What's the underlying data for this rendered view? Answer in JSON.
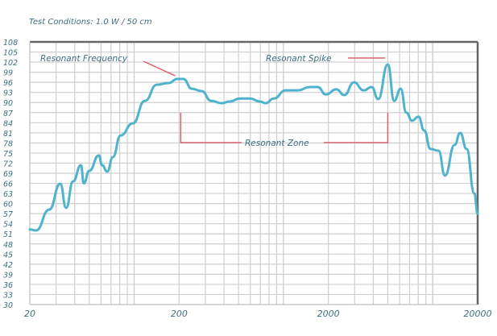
{
  "chart_data": {
    "type": "line",
    "title": "Test Conditions: 1.0 W / 50 cm",
    "xlabel": "",
    "ylabel": "",
    "x_scale": "log",
    "xlim": [
      20,
      20000
    ],
    "ylim": [
      30,
      108
    ],
    "x_tick_labels": [
      "20",
      "200",
      "2000",
      "20000"
    ],
    "x_ticks": [
      20,
      200,
      2000,
      20000
    ],
    "y_ticks": [
      30,
      33,
      36,
      39,
      42,
      45,
      48,
      51,
      54,
      57,
      60,
      63,
      66,
      69,
      72,
      75,
      78,
      81,
      84,
      87,
      90,
      93,
      96,
      99,
      102,
      105,
      108
    ],
    "grid": true,
    "line_color": "#4fb3cc",
    "annotation_color": "#d9606e",
    "series": [
      {
        "x": [
          20,
          22,
          27,
          32,
          35,
          39,
          44,
          46,
          50,
          58,
          61,
          66,
          72,
          81,
          98,
          118,
          142,
          171,
          194,
          214,
          243,
          283,
          328,
          386,
          437,
          512,
          594,
          698,
          760,
          861,
          1036,
          1246,
          1500,
          1697,
          1922,
          2260,
          2556,
          2968,
          3446,
          3900,
          4310,
          5000,
          5520,
          6100,
          6650,
          7260,
          8030,
          8760,
          9670,
          10940,
          12080,
          14010,
          15280,
          16860,
          19000,
          20000
        ],
        "y": [
          52.3,
          52,
          58.2,
          65.9,
          58.7,
          66.6,
          71.4,
          66,
          69.7,
          74.3,
          71.4,
          69.5,
          73.8,
          80.2,
          83.8,
          90.5,
          95.3,
          95.8,
          97,
          97,
          94.1,
          93.4,
          90.5,
          89.8,
          90.3,
          91.2,
          91.2,
          90.3,
          89.8,
          91.2,
          93.6,
          93.6,
          94.6,
          94.6,
          92.4,
          93.9,
          92.2,
          96,
          93.6,
          94.6,
          91,
          101.3,
          90.5,
          94.1,
          87,
          84.6,
          85.8,
          81.7,
          76.2,
          75.7,
          68.3,
          77.4,
          81,
          76.2,
          63,
          57
        ]
      }
    ],
    "annotations": [
      {
        "text": "Resonant Frequency",
        "x": 200,
        "y": 97
      },
      {
        "text": "Resonant Spike",
        "x": 5000,
        "y": 101.3
      },
      {
        "text": "Resonant Zone",
        "x_range": [
          200,
          5000
        ]
      }
    ]
  }
}
